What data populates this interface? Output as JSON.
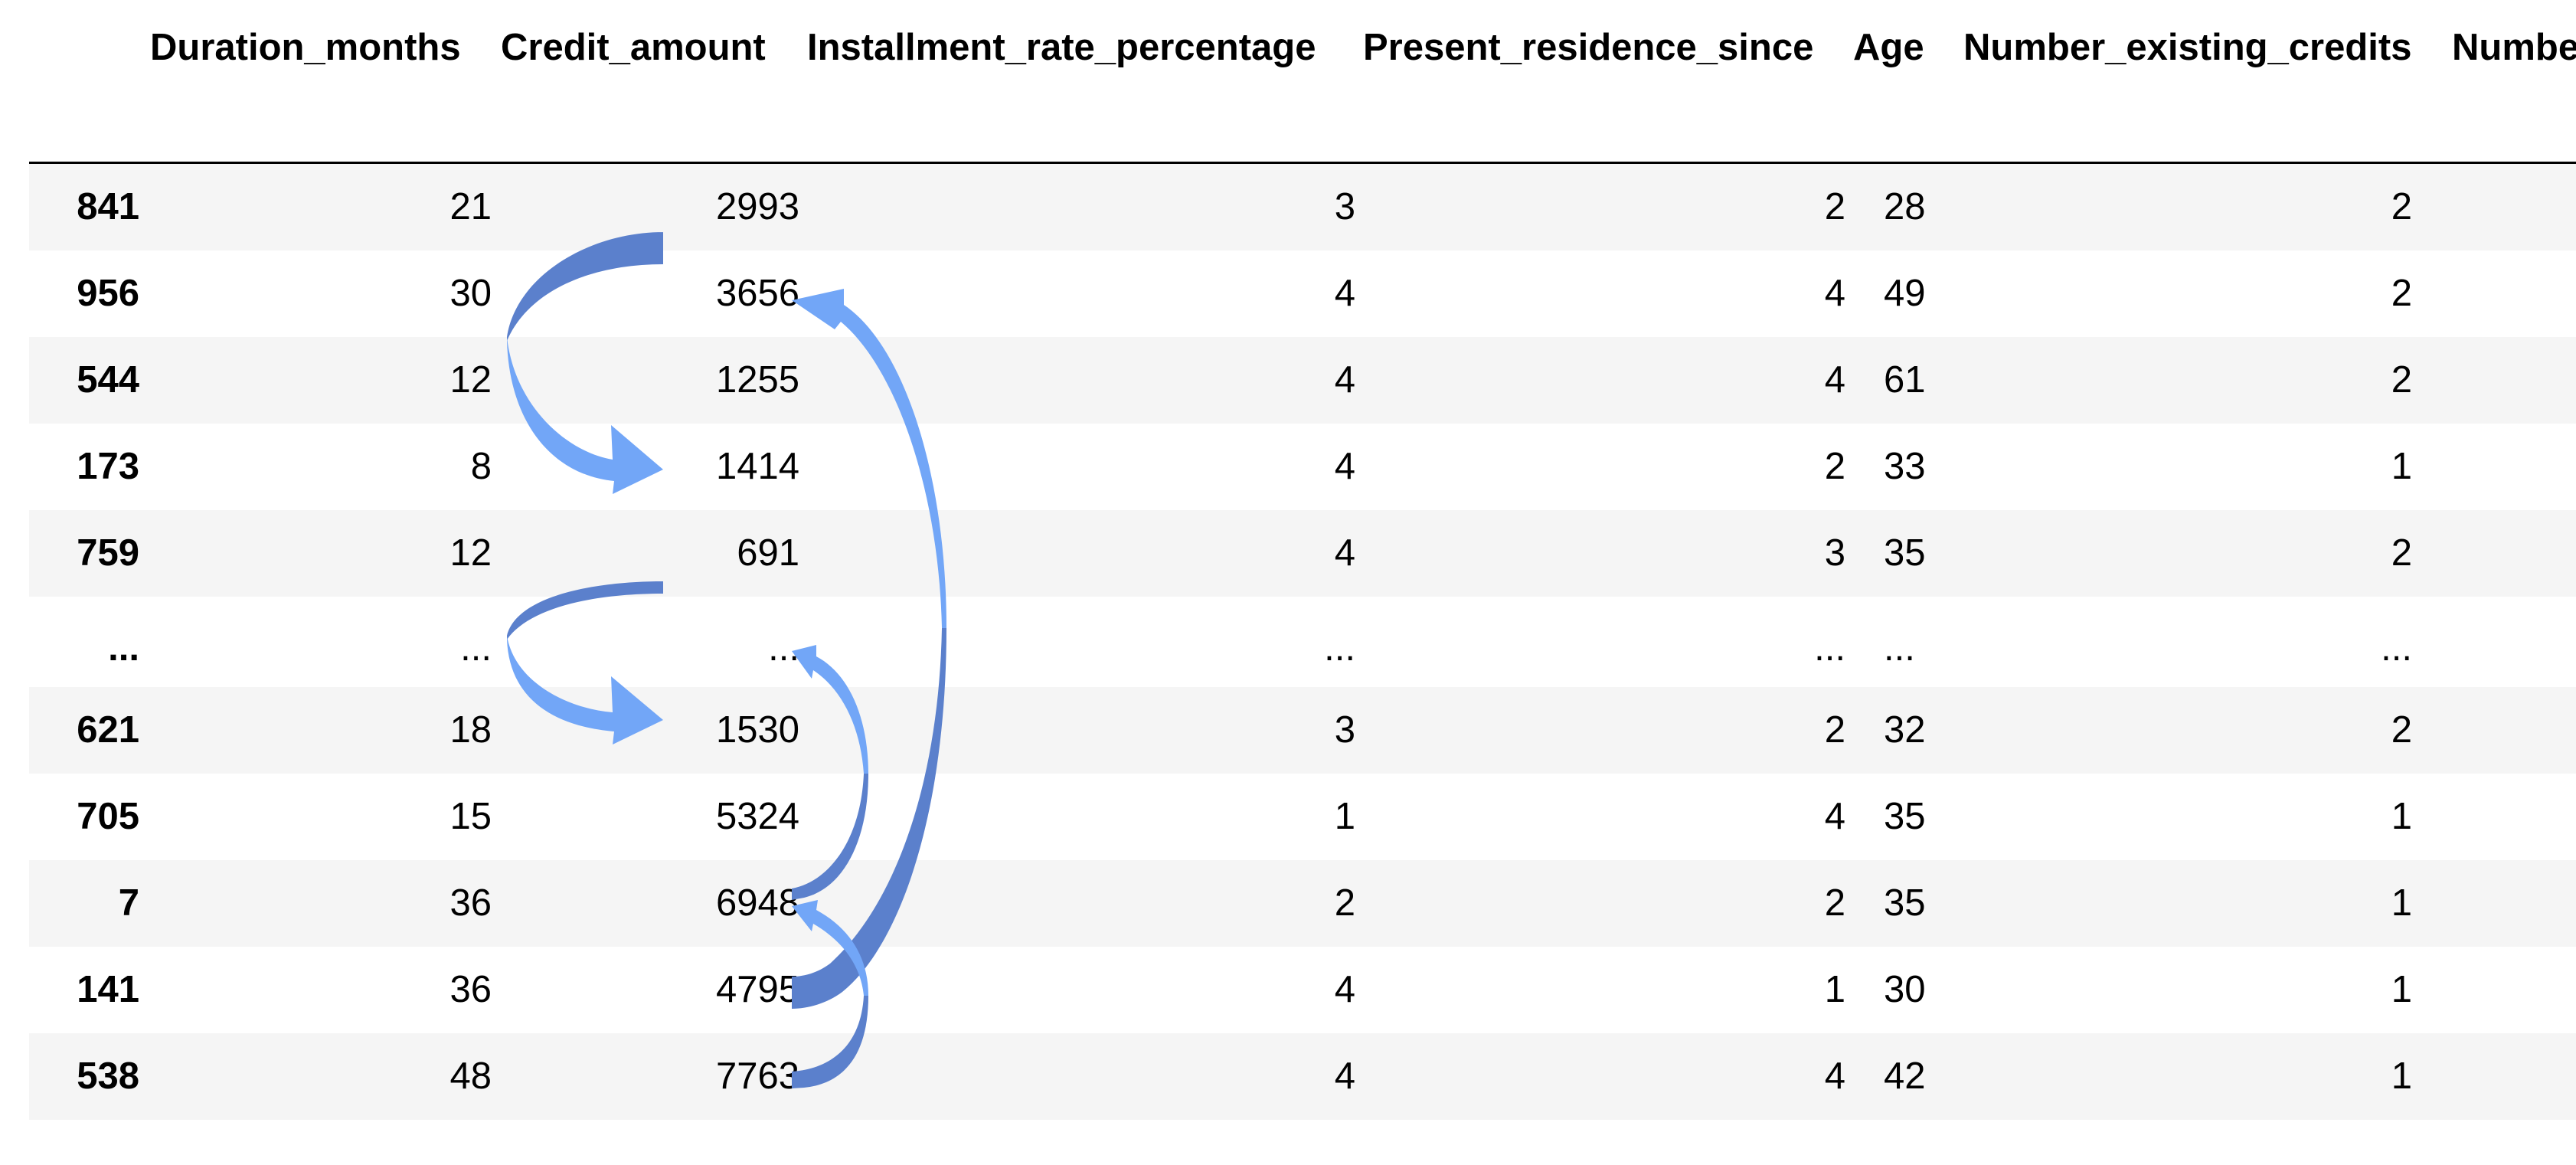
{
  "table": {
    "columns": [
      "",
      "Duration_months",
      "Credit_amount",
      "Installment_rate_percentage",
      "Present_residence_since",
      "Age",
      "Number_existing_credits",
      "Numbe"
    ],
    "rows": [
      {
        "index": "841",
        "cells": [
          "21",
          "2993",
          "3",
          "2",
          "28",
          "2"
        ]
      },
      {
        "index": "956",
        "cells": [
          "30",
          "3656",
          "4",
          "4",
          "49",
          "2"
        ]
      },
      {
        "index": "544",
        "cells": [
          "12",
          "1255",
          "4",
          "4",
          "61",
          "2"
        ]
      },
      {
        "index": "173",
        "cells": [
          "8",
          "1414",
          "4",
          "2",
          "33",
          "1"
        ]
      },
      {
        "index": "759",
        "cells": [
          "12",
          "691",
          "4",
          "3",
          "35",
          "2"
        ]
      },
      {
        "index": "...",
        "cells": [
          "...",
          "...",
          "...",
          "...",
          "...",
          "..."
        ]
      },
      {
        "index": "621",
        "cells": [
          "18",
          "1530",
          "3",
          "2",
          "32",
          "2"
        ]
      },
      {
        "index": "705",
        "cells": [
          "15",
          "5324",
          "1",
          "4",
          "35",
          "1"
        ]
      },
      {
        "index": "7",
        "cells": [
          "36",
          "6948",
          "2",
          "2",
          "35",
          "1"
        ]
      },
      {
        "index": "141",
        "cells": [
          "36",
          "4795",
          "4",
          "1",
          "30",
          "1"
        ]
      },
      {
        "index": "538",
        "cells": [
          "48",
          "7763",
          "4",
          "4",
          "42",
          "1"
        ]
      }
    ]
  },
  "arrows": {
    "color_dark": "#5b80cc",
    "color_light": "#72a6f7",
    "links": [
      {
        "from_row": "841",
        "to_row": "173",
        "column": "Credit_amount",
        "side": "left"
      },
      {
        "from_row": "759",
        "to_row": "621",
        "column": "Credit_amount",
        "side": "left"
      },
      {
        "from_row": "141",
        "to_row": "956",
        "column": "Credit_amount",
        "side": "right"
      },
      {
        "from_row": "7",
        "to_row": "...",
        "column": "Credit_amount",
        "side": "right"
      },
      {
        "from_row": "538",
        "to_row": "7",
        "column": "Credit_amount",
        "side": "right"
      }
    ]
  }
}
